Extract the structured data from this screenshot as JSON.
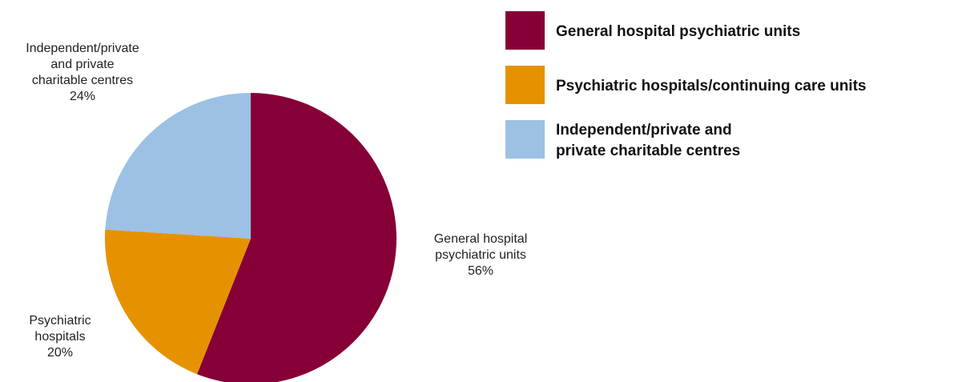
{
  "chart_data": {
    "type": "pie",
    "title": "",
    "start_angle_deg": 0,
    "direction": "clockwise",
    "slices": [
      {
        "name": "General hospital psychiatric units",
        "value": 56,
        "label_lines": [
          "General hospital",
          "psychiatric units",
          "56%"
        ],
        "color": "#860037"
      },
      {
        "name": "Psychiatric hospitals/continuing care units",
        "value": 20,
        "label_lines": [
          "Psychiatric",
          "hospitals",
          "20%"
        ],
        "color": "#E69200"
      },
      {
        "name": "Independent/private and private charitable centres",
        "value": 24,
        "label_lines": [
          "Independent/private",
          "and private",
          "charitable centres",
          "24%"
        ],
        "color": "#9CC1E4"
      }
    ],
    "legend": {
      "position": "top-right",
      "items": [
        {
          "lines": [
            "General hospital psychiatric units"
          ],
          "color": "#860037"
        },
        {
          "lines": [
            "Psychiatric hospitals/continuing care units"
          ],
          "color": "#E69200"
        },
        {
          "lines": [
            "Independent/private and",
            "private charitable centres"
          ],
          "color": "#9CC1E4"
        }
      ]
    }
  }
}
